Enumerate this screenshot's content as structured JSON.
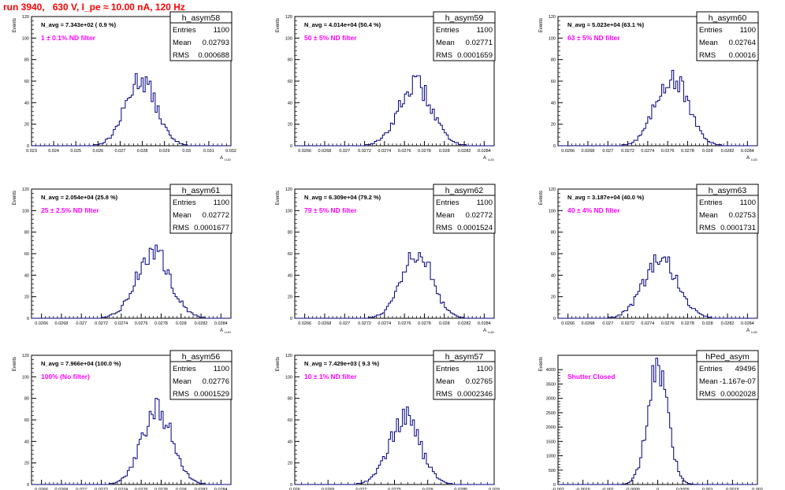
{
  "page_title": "run 3940,   630 V, I_pe ≈ 10.00 nA, 120 Hz",
  "colors": {
    "title": "#ff0000",
    "annotation": "#ff00ff",
    "histogram": "#000080",
    "frame": "#000000"
  },
  "chart_data": [
    {
      "type": "histogram",
      "hist_name": "h_asym58",
      "stats": {
        "entries_label": "Entries",
        "entries": "1100",
        "mean_label": "Mean",
        "mean": "0.02793",
        "rms_label": "RMS",
        "rms": "0.000688"
      },
      "n_avg_text": "N_avg = 7.343e+02 ( 0.9 %)",
      "filter_text": "1 ± 0.1% ND filter",
      "ylabel": "Events",
      "xlabel": "A",
      "xlabel_sub": "LUD",
      "xlim": [
        0.023,
        0.032
      ],
      "ylim": [
        0,
        120
      ],
      "xticks": [
        "0.023",
        "0.024",
        "0.025",
        "0.026",
        "0.027",
        "0.028",
        "0.029",
        "0.03",
        "0.031",
        "0.032"
      ],
      "yticks": [
        "0",
        "20",
        "40",
        "60",
        "80",
        "100",
        "120"
      ],
      "center": 0.02793,
      "sigma": 0.000688,
      "peak": 62
    },
    {
      "type": "histogram",
      "hist_name": "h_asym59",
      "stats": {
        "entries_label": "Entries",
        "entries": "1100",
        "mean_label": "Mean",
        "mean": "0.02771",
        "rms_label": "RMS",
        "rms": "0.0001659"
      },
      "n_avg_text": "N_avg = 4.014e+04 (50.4 %)",
      "filter_text": "50 ± 5% ND filter",
      "ylabel": "Events",
      "xlabel": "A",
      "xlabel_sub": "LUD",
      "xlim": [
        0.0265,
        0.0285
      ],
      "ylim": [
        0,
        120
      ],
      "xticks": [
        "0.0266",
        "0.0268",
        "0.027",
        "0.0272",
        "0.0274",
        "0.0276",
        "0.0278",
        "0.028",
        "0.0282",
        "0.0284"
      ],
      "yticks": [
        "0",
        "20",
        "40",
        "60",
        "80",
        "100",
        "120"
      ],
      "center": 0.02771,
      "sigma": 0.0001659,
      "peak": 57
    },
    {
      "type": "histogram",
      "hist_name": "h_asym60",
      "stats": {
        "entries_label": "Entries",
        "entries": "1100",
        "mean_label": "Mean",
        "mean": "0.02764",
        "rms_label": "RMS",
        "rms": "0.00016"
      },
      "n_avg_text": "N_avg = 5.023e+04 (63.1 %)",
      "filter_text": "63 ± 5% ND filter",
      "ylabel": "Events",
      "xlabel": "A",
      "xlabel_sub": "LUD",
      "xlim": [
        0.0265,
        0.0285
      ],
      "ylim": [
        0,
        120
      ],
      "xticks": [
        "0.0266",
        "0.0268",
        "0.027",
        "0.0272",
        "0.0274",
        "0.0276",
        "0.0278",
        "0.028",
        "0.0282",
        "0.0284"
      ],
      "yticks": [
        "0",
        "20",
        "40",
        "60",
        "80",
        "100",
        "120"
      ],
      "center": 0.02764,
      "sigma": 0.00016,
      "peak": 65
    },
    {
      "type": "histogram",
      "hist_name": "h_asym61",
      "stats": {
        "entries_label": "Entries",
        "entries": "1100",
        "mean_label": "Mean",
        "mean": "0.02772",
        "rms_label": "RMS",
        "rms": "0.0001677"
      },
      "n_avg_text": "N_avg = 2.054e+04 (25.8 %)",
      "filter_text": "25 ± 2.5% ND filter",
      "ylabel": "Events",
      "xlabel": "A",
      "xlabel_sub": "LUD",
      "xlim": [
        0.0265,
        0.0285
      ],
      "ylim": [
        0,
        120
      ],
      "xticks": [
        "0.0266",
        "0.0268",
        "0.027",
        "0.0272",
        "0.0274",
        "0.0276",
        "0.0278",
        "0.028",
        "0.0282",
        "0.0284"
      ],
      "yticks": [
        "0",
        "20",
        "40",
        "60",
        "80",
        "100",
        "120"
      ],
      "center": 0.02772,
      "sigma": 0.0001677,
      "peak": 62
    },
    {
      "type": "histogram",
      "hist_name": "h_asym62",
      "stats": {
        "entries_label": "Entries",
        "entries": "1100",
        "mean_label": "Mean",
        "mean": "0.02772",
        "rms_label": "RMS",
        "rms": "0.0001524"
      },
      "n_avg_text": "N_avg = 6.309e+04 (79.2 %)",
      "filter_text": "79 ± 5% ND filter",
      "ylabel": "Events",
      "xlabel": "A",
      "xlabel_sub": "LUD",
      "xlim": [
        0.0265,
        0.0285
      ],
      "ylim": [
        0,
        120
      ],
      "xticks": [
        "0.0266",
        "0.0268",
        "0.027",
        "0.0272",
        "0.0274",
        "0.0276",
        "0.0278",
        "0.028",
        "0.0282",
        "0.0284"
      ],
      "yticks": [
        "0",
        "20",
        "40",
        "60",
        "80",
        "100",
        "120"
      ],
      "center": 0.02772,
      "sigma": 0.0001524,
      "peak": 64
    },
    {
      "type": "histogram",
      "hist_name": "h_asym63",
      "stats": {
        "entries_label": "Entries",
        "entries": "1100",
        "mean_label": "Mean",
        "mean": "0.02753",
        "rms_label": "RMS",
        "rms": "0.0001731"
      },
      "n_avg_text": "N_avg = 3.187e+04 (40.0 %)",
      "filter_text": "40 ± 4% ND filter",
      "ylabel": "Events",
      "xlabel": "A",
      "xlabel_sub": "LUD",
      "xlim": [
        0.0265,
        0.0285
      ],
      "ylim": [
        0,
        120
      ],
      "xticks": [
        "0.0266",
        "0.0268",
        "0.027",
        "0.0272",
        "0.0274",
        "0.0276",
        "0.0278",
        "0.028",
        "0.0282",
        "0.0284"
      ],
      "yticks": [
        "0",
        "20",
        "40",
        "60",
        "80",
        "100",
        "120"
      ],
      "center": 0.02753,
      "sigma": 0.0001731,
      "peak": 54
    },
    {
      "type": "histogram",
      "hist_name": "h_asym56",
      "stats": {
        "entries_label": "Entries",
        "entries": "1100",
        "mean_label": "Mean",
        "mean": "0.02776",
        "rms_label": "RMS",
        "rms": "0.0001529"
      },
      "n_avg_text": "N_avg = 7.966e+04 (100.0 %)",
      "filter_text": "100% (No filter)",
      "ylabel": "Events",
      "xlabel": "A",
      "xlabel_sub": "LUD",
      "xlim": [
        0.0265,
        0.0285
      ],
      "ylim": [
        0,
        120
      ],
      "xticks": [
        "0.0266",
        "0.0268",
        "0.027",
        "0.0272",
        "0.0274",
        "0.0276",
        "0.0278",
        "0.028",
        "0.0282",
        "0.0284"
      ],
      "yticks": [
        "0",
        "20",
        "40",
        "60",
        "80",
        "100",
        "120"
      ],
      "center": 0.02776,
      "sigma": 0.0001529,
      "peak": 70
    },
    {
      "type": "histogram",
      "hist_name": "h_asym57",
      "stats": {
        "entries_label": "Entries",
        "entries": "1100",
        "mean_label": "Mean",
        "mean": "0.02765",
        "rms_label": "RMS",
        "rms": "0.0002346"
      },
      "n_avg_text": "N_avg = 7.429e+03 ( 9.3 %)",
      "filter_text": "10 ± 1% ND filter",
      "ylabel": "Events",
      "xlabel": "A",
      "xlabel_sub": "LUD",
      "xlim": [
        0.026,
        0.029
      ],
      "ylim": [
        0,
        120
      ],
      "xticks": [
        "0.026",
        "0.0265",
        "0.027",
        "0.0275",
        "0.028",
        "0.0285",
        "0.029"
      ],
      "yticks": [
        "0",
        "20",
        "40",
        "60",
        "80",
        "100",
        "120"
      ],
      "center": 0.02765,
      "sigma": 0.0002346,
      "peak": 62
    },
    {
      "type": "histogram",
      "hist_name": "hPed_asym",
      "stats": {
        "entries_label": "Entries",
        "entries": "49496",
        "mean_label": "Mean",
        "mean": "-1.167e-07",
        "rms_label": "RMS",
        "rms": "0.0002028"
      },
      "n_avg_text": "",
      "filter_text": "Shutter Closed",
      "ylabel": "Events",
      "xlabel": "A",
      "xlabel_sub": "LUD",
      "xlim": [
        -0.002,
        0.002
      ],
      "ylim": [
        0,
        4500
      ],
      "xticks": [
        "-0.002",
        "-0.0015",
        "-0.001",
        "-0.0005",
        "0",
        "0.0005",
        "0.001",
        "0.0015",
        "0.002"
      ],
      "yticks": [
        "0",
        "500",
        "1000",
        "1500",
        "2000",
        "2500",
        "3000",
        "3500",
        "4000"
      ],
      "center": -1.167e-07,
      "sigma": 0.0002028,
      "peak": 4000
    }
  ]
}
